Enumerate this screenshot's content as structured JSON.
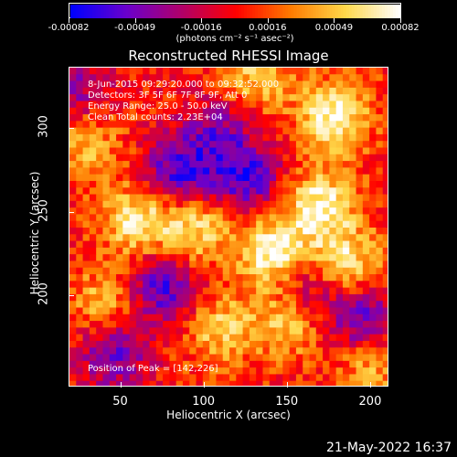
{
  "colorbar": {
    "tick_labels": [
      "-0.00082",
      "-0.00049",
      "-0.00016",
      "0.00016",
      "0.00049",
      "0.00082"
    ],
    "unit": "(photons cm⁻² s⁻¹ asec⁻²)",
    "colors": [
      "#0000ff",
      "#6a00cc",
      "#b0006a",
      "#ff0000",
      "#ff7a00",
      "#ffd84a",
      "#ffffff"
    ]
  },
  "title": "Reconstructed RHESSI Image",
  "annotations": [
    "8-Jun-2015 09:29:20.000 to 09:32:52.000",
    "Detectors: 3F 5F 6F 7F 8F 9F, Att 0",
    "Energy Range: 25.0 - 50.0 keV",
    "Clean     Total counts: 2.23E+04"
  ],
  "peak_text": "Position of Peak = [142,226]",
  "timestamp": "21-May-2022 16:37",
  "chart_data": {
    "type": "heatmap",
    "title": "Reconstructed RHESSI Image",
    "xlabel": "Heliocentric X (arcsec)",
    "ylabel": "Heliocentric Y (arcsec)",
    "xlim": [
      19,
      211
    ],
    "ylim": [
      145,
      337
    ],
    "xticks": [
      50,
      100,
      150,
      200
    ],
    "yticks": [
      200,
      250,
      300
    ],
    "colorbar_range": [
      -0.00082,
      0.00082
    ],
    "peak": [
      142,
      226
    ],
    "bright_regions": [
      {
        "x": 142,
        "y": 226,
        "level": 1.0
      },
      {
        "x": 178,
        "y": 308,
        "level": 0.9
      },
      {
        "x": 170,
        "y": 255,
        "level": 0.85
      },
      {
        "x": 60,
        "y": 245,
        "level": 0.8
      },
      {
        "x": 95,
        "y": 240,
        "level": 0.7
      },
      {
        "x": 185,
        "y": 220,
        "level": 0.75
      },
      {
        "x": 110,
        "y": 180,
        "level": 0.6
      },
      {
        "x": 150,
        "y": 185,
        "level": 0.65
      },
      {
        "x": 40,
        "y": 195,
        "level": 0.55
      },
      {
        "x": 30,
        "y": 290,
        "level": 0.5
      },
      {
        "x": 130,
        "y": 330,
        "level": 0.6
      },
      {
        "x": 200,
        "y": 160,
        "level": 0.55
      }
    ],
    "dark_regions": [
      {
        "x": 85,
        "y": 275,
        "level": -0.85
      },
      {
        "x": 125,
        "y": 270,
        "level": -0.8
      },
      {
        "x": 75,
        "y": 205,
        "level": -0.85
      },
      {
        "x": 45,
        "y": 165,
        "level": -0.7
      },
      {
        "x": 195,
        "y": 185,
        "level": -0.8
      },
      {
        "x": 160,
        "y": 205,
        "level": -0.6
      },
      {
        "x": 25,
        "y": 325,
        "level": -0.5
      },
      {
        "x": 110,
        "y": 300,
        "level": -0.55
      }
    ]
  }
}
